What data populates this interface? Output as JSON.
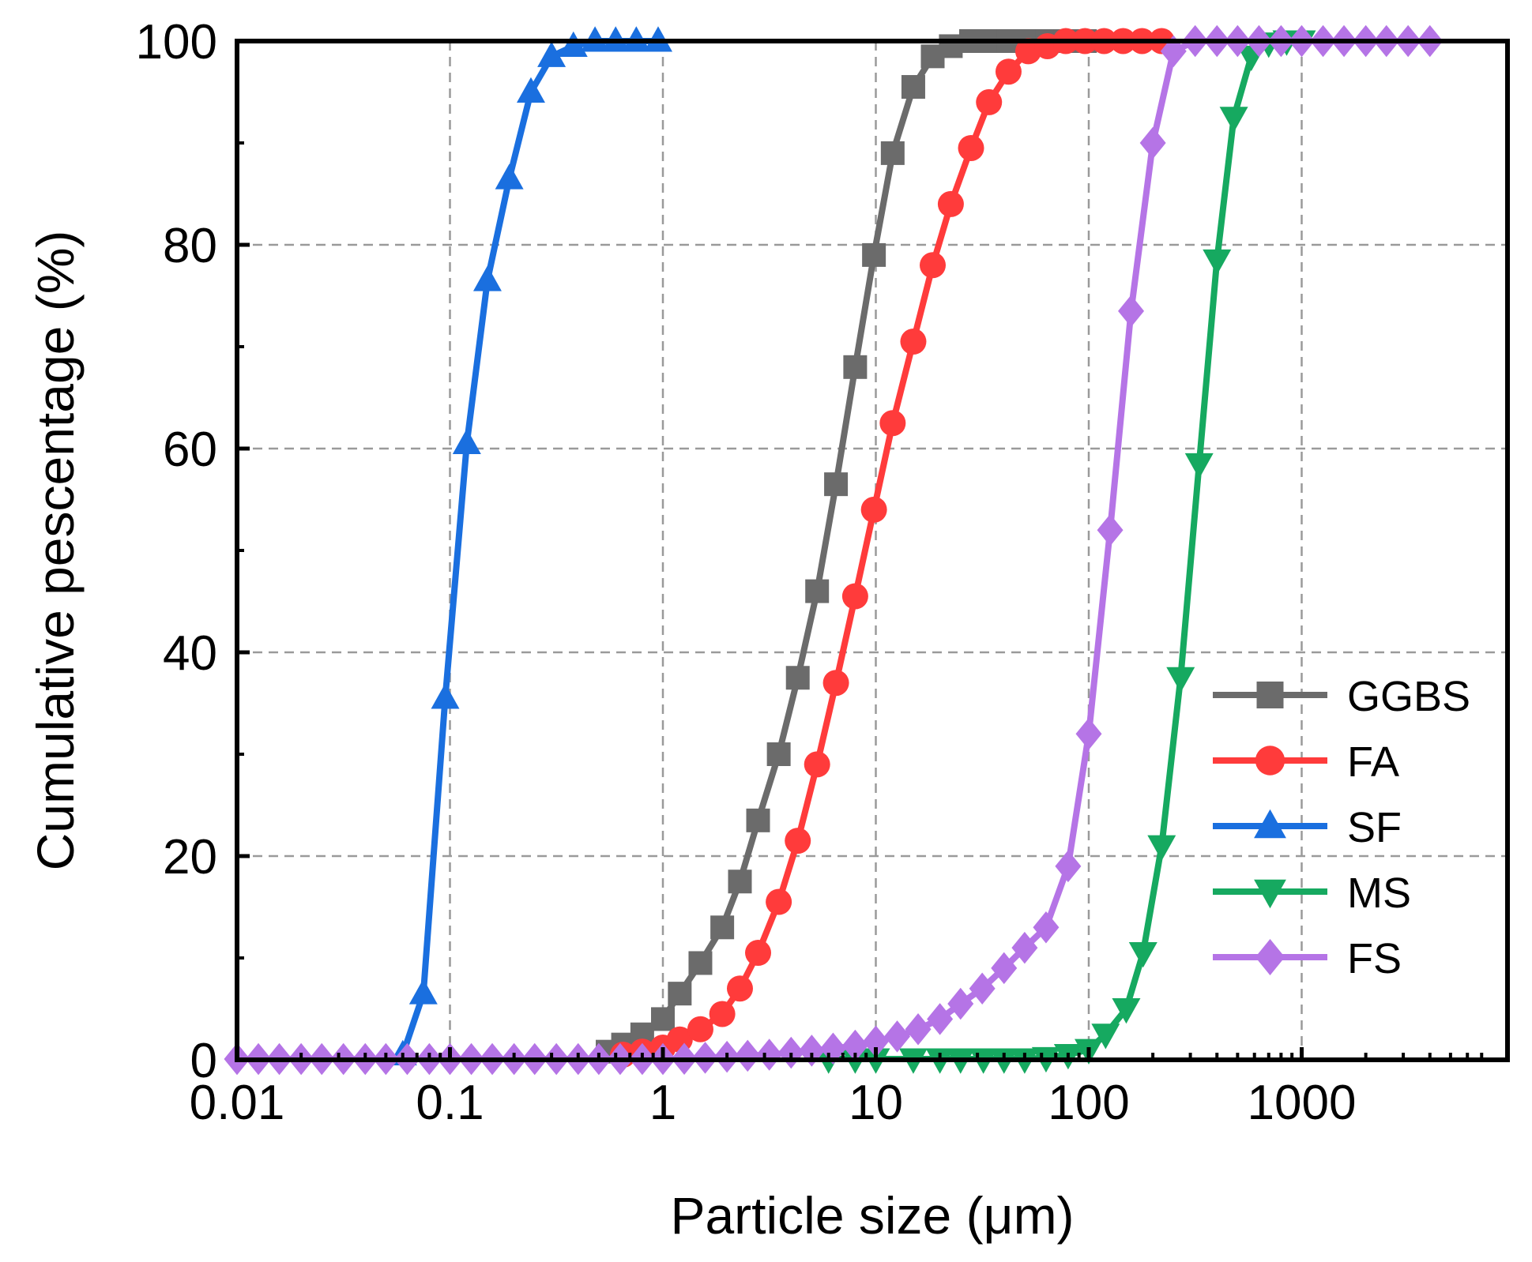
{
  "chart_data": {
    "type": "line",
    "title": "",
    "xlabel": "Particle size (μm)",
    "ylabel": "Cumulative pescentage (%)",
    "xscale": "log",
    "xlim": [
      0.01,
      8000
    ],
    "ylim": [
      0,
      100
    ],
    "xticks": [
      0.01,
      0.1,
      1,
      10,
      100,
      1000
    ],
    "xtick_labels": [
      "0.01",
      "0.1",
      "1",
      "10",
      "100",
      "1000"
    ],
    "yticks": [
      0,
      20,
      40,
      60,
      80,
      100
    ],
    "ytick_labels": [
      "0",
      "20",
      "40",
      "60",
      "80",
      "100"
    ],
    "grid": true,
    "legend_position": "bottom-right",
    "series": [
      {
        "name": "GGBS",
        "color": "#6b6b6b",
        "marker": "square",
        "x": [
          0.55,
          0.65,
          0.8,
          1.0,
          1.2,
          1.5,
          1.9,
          2.3,
          2.8,
          3.5,
          4.3,
          5.3,
          6.5,
          8.0,
          9.8,
          12,
          15,
          18.5,
          22.5,
          28,
          34,
          42,
          52,
          64,
          78,
          96
        ],
        "y": [
          0.8,
          1.5,
          2.5,
          4.0,
          6.5,
          9.5,
          13,
          17.5,
          23.5,
          30,
          37.5,
          46,
          56.5,
          68,
          79,
          89,
          95.5,
          98.5,
          99.5,
          100,
          100,
          100,
          100,
          100,
          100,
          100
        ]
      },
      {
        "name": "FA",
        "color": "#ff3b3b",
        "marker": "circle",
        "x": [
          0.65,
          0.8,
          1.0,
          1.2,
          1.5,
          1.9,
          2.3,
          2.8,
          3.5,
          4.3,
          5.3,
          6.5,
          8.0,
          9.8,
          12,
          15,
          18.5,
          22.5,
          28,
          34,
          42,
          52,
          64,
          78,
          96,
          118,
          145,
          178,
          220
        ],
        "y": [
          0.5,
          0.8,
          1.2,
          2.0,
          3.0,
          4.5,
          7.0,
          10.5,
          15.5,
          21.5,
          29,
          37,
          45.5,
          54,
          62.5,
          70.5,
          78,
          84,
          89.5,
          94,
          97,
          99,
          99.5,
          100,
          100,
          100,
          100,
          100,
          100
        ]
      },
      {
        "name": "SF",
        "color": "#1a6fdf",
        "marker": "triangle-up",
        "x": [
          0.06,
          0.075,
          0.095,
          0.12,
          0.15,
          0.19,
          0.24,
          0.3,
          0.38,
          0.48,
          0.6,
          0.75,
          0.95
        ],
        "y": [
          0.5,
          6.5,
          35.5,
          60.5,
          76.5,
          86.5,
          95,
          98.5,
          99.5,
          100,
          100,
          100,
          100
        ]
      },
      {
        "name": "MS",
        "color": "#16a960",
        "marker": "triangle-down",
        "x": [
          6,
          8,
          10,
          15,
          20,
          25,
          32,
          40,
          50,
          63,
          80,
          100,
          120,
          150,
          180,
          220,
          270,
          330,
          400,
          480,
          580,
          700,
          850,
          1000
        ],
        "y": [
          0,
          0,
          0,
          0,
          0,
          0,
          0,
          0,
          0,
          0.2,
          0.5,
          1.0,
          2.5,
          5.0,
          10.5,
          21,
          37.5,
          58.5,
          78.5,
          92.5,
          98.5,
          99.8,
          100,
          100
        ]
      },
      {
        "name": "FS",
        "color": "#b574e6",
        "marker": "diamond",
        "x": [
          0.01,
          0.0126,
          0.0158,
          0.02,
          0.025,
          0.0316,
          0.04,
          0.05,
          0.063,
          0.08,
          0.1,
          0.126,
          0.158,
          0.2,
          0.25,
          0.316,
          0.4,
          0.5,
          0.63,
          0.8,
          1.0,
          1.26,
          1.58,
          2.0,
          2.5,
          3.16,
          4.0,
          5.0,
          6.3,
          8.0,
          10,
          12.6,
          15.8,
          20,
          25,
          31.6,
          40,
          50,
          63,
          80,
          100,
          126,
          158,
          200,
          250,
          316,
          400,
          500,
          630,
          800,
          1000,
          1260,
          1580,
          2000,
          2500,
          3160,
          4000
        ],
        "y": [
          0,
          0,
          0,
          0,
          0,
          0,
          0,
          0,
          0,
          0,
          0,
          0,
          0,
          0,
          0,
          0,
          0,
          0,
          0,
          0,
          0,
          0.1,
          0.2,
          0.3,
          0.4,
          0.5,
          0.7,
          0.9,
          1.1,
          1.4,
          1.8,
          2.3,
          3.0,
          4.0,
          5.5,
          7.0,
          9.0,
          11.0,
          13.0,
          19.0,
          32.0,
          52.0,
          73.5,
          90.0,
          99.0,
          100,
          100,
          100,
          100,
          100,
          100,
          100,
          100,
          100,
          100,
          100,
          100
        ]
      }
    ]
  }
}
